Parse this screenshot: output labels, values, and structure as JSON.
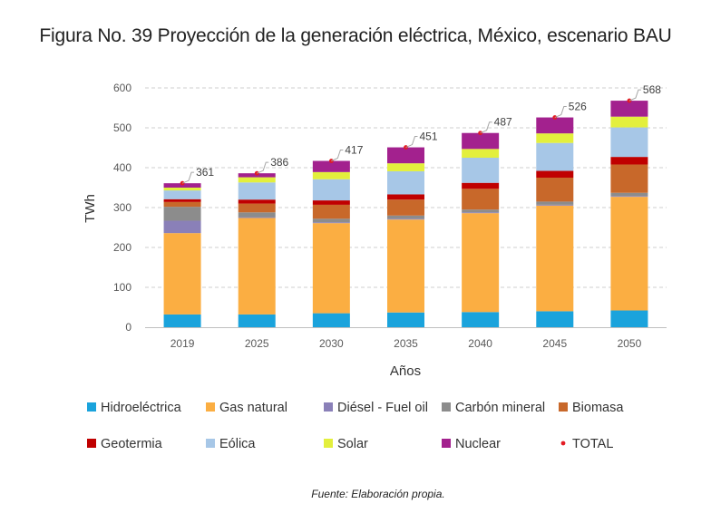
{
  "title": "Figura No. 39 Proyección de la generación eléctrica, México, escenario BAU",
  "source": "Fuente: Elaboración propia.",
  "chart_data": {
    "type": "bar",
    "stacked": true,
    "categories": [
      "2019",
      "2025",
      "2030",
      "2035",
      "2040",
      "2045",
      "2050"
    ],
    "xlabel": "Años",
    "ylabel": "TWh",
    "ylim": [
      0,
      600
    ],
    "yticks": [
      "0",
      "100",
      "200",
      "300",
      "400",
      "500",
      "600"
    ],
    "grid": true,
    "legend_placement": "bottom",
    "series": [
      {
        "name": "Hidroeléctrica",
        "color": "#1aa3dc",
        "values": [
          32,
          32,
          35,
          37,
          38,
          40,
          42
        ]
      },
      {
        "name": "Gas natural",
        "color": "#fbae42",
        "values": [
          204,
          242,
          226,
          233,
          248,
          265,
          285
        ]
      },
      {
        "name": "Diésel - Fuel oil",
        "color": "#8a80b8",
        "values": [
          31,
          2,
          2,
          2,
          2,
          2,
          2
        ]
      },
      {
        "name": "Carbón mineral",
        "color": "#8c8c8c",
        "values": [
          35,
          12,
          9,
          8,
          7,
          8,
          8
        ]
      },
      {
        "name": "Biomasa",
        "color": "#c8682a",
        "values": [
          12,
          22,
          35,
          40,
          52,
          60,
          71
        ]
      },
      {
        "name": "Geotermia",
        "color": "#c00000",
        "values": [
          7,
          10,
          11,
          13,
          15,
          17,
          19
        ]
      },
      {
        "name": "Eólica",
        "color": "#a7c7e7",
        "values": [
          22,
          43,
          53,
          58,
          63,
          70,
          74
        ]
      },
      {
        "name": "Solar",
        "color": "#e3ef3d",
        "values": [
          7,
          13,
          18,
          20,
          22,
          24,
          27
        ]
      },
      {
        "name": "Nuclear",
        "color": "#a3218e",
        "values": [
          11,
          10,
          28,
          40,
          40,
          40,
          40
        ]
      }
    ],
    "total": {
      "name": "TOTAL",
      "color": "#e31b23",
      "values": [
        361,
        386,
        417,
        451,
        487,
        526,
        568
      ]
    }
  }
}
